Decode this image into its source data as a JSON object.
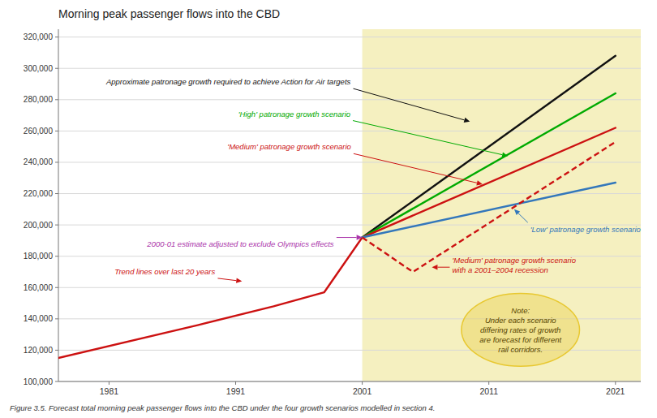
{
  "chart_data": {
    "type": "line",
    "title": "Morning peak passenger flows into the CBD",
    "caption": "Figure 3.5. Forecast total morning peak passenger flows into the CBD under the four growth scenarios modelled in section 4.",
    "xlim": [
      1977,
      2023
    ],
    "ylim": [
      100000,
      325000
    ],
    "xticks": [
      1981,
      1991,
      2001,
      2011,
      2021
    ],
    "yticks": [
      {
        "value": 100000,
        "label": "100,000"
      },
      {
        "value": 120000,
        "label": "120,000"
      },
      {
        "value": 140000,
        "label": "140,000"
      },
      {
        "value": 160000,
        "label": "160,000"
      },
      {
        "value": 180000,
        "label": "180,000"
      },
      {
        "value": 200000,
        "label": "200,000"
      },
      {
        "value": 220000,
        "label": "220,000"
      },
      {
        "value": 240000,
        "label": "240,000"
      },
      {
        "value": 260000,
        "label": "260,000"
      },
      {
        "value": 280000,
        "label": "280,000"
      },
      {
        "value": 300000,
        "label": "300,000"
      },
      {
        "value": 320000,
        "label": "320,000"
      }
    ],
    "grid": true,
    "forecast": {
      "x": 2001,
      "color": "#F5F0C0"
    },
    "series": [
      {
        "x": [
          1977,
          1988,
          1994,
          1998,
          2001
        ],
        "values": [
          115000,
          136000,
          148000,
          157000,
          192000
        ],
        "color": "#CC1111"
      },
      {
        "x": [
          2001,
          2021
        ],
        "values": [
          192000,
          308000
        ],
        "color": "#111111"
      },
      {
        "x": [
          2001,
          2021
        ],
        "values": [
          192000,
          284000
        ],
        "color": "#00AA00"
      },
      {
        "x": [
          2001,
          2021
        ],
        "values": [
          192000,
          262000
        ],
        "color": "#CC1111"
      },
      {
        "x": [
          2001,
          2021
        ],
        "values": [
          192000,
          227000
        ],
        "color": "#3377BB"
      },
      {
        "x": [
          2001,
          2005,
          2021
        ],
        "values": [
          192000,
          170000,
          253000
        ],
        "color": "#CC1111",
        "line_style": "dashed"
      }
    ],
    "annotations": [
      {
        "text": "Approximate patronage growth required to achieve Action for Air targets",
        "x": 2009.5,
        "y": 266000,
        "color": "#111111"
      },
      {
        "text": "'High' patronage growth scenario",
        "x": 2012.5,
        "y": 244000,
        "color": "#00AA00"
      },
      {
        "text": "'Medium' patronage growth scenario",
        "x": 2010.5,
        "y": 226000,
        "color": "#CC1111"
      },
      {
        "text": "'Low' patronage growth scenario",
        "x": 2013.0,
        "y": 210000,
        "color": "#3377BB"
      },
      {
        "text": "'Medium' patronage growth scenario\nwith a 2001–2004 recession",
        "x": 2006.5,
        "y": 173000,
        "color": "#CC1111"
      },
      {
        "text": "2000-01 estimate adjusted to exclude Olympics effects",
        "x": 2001.0,
        "y": 192000,
        "color": "#AA33AA"
      },
      {
        "text": "Trend lines over last 20 years",
        "x": 1991.5,
        "y": 164000,
        "color": "#CC1111"
      }
    ],
    "note": {
      "text": "Note:\nUnder each scenario\ndiffering rates of growth\nare forecast for different\nrail corridors.",
      "x": 2013.5,
      "y": 133000,
      "color": "#E8C830"
    }
  }
}
